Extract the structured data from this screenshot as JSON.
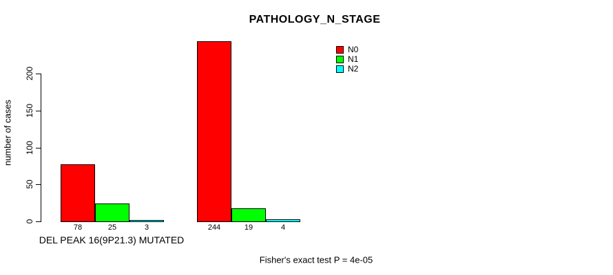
{
  "chart_data": {
    "type": "bar",
    "title": "PATHOLOGY_N_STAGE",
    "ylabel": "number of cases",
    "yticks": [
      0,
      50,
      100,
      150,
      200
    ],
    "ylim": [
      0,
      244
    ],
    "grid": false,
    "legend_position": "top-right",
    "categories": [
      "DEL PEAK 16(9P21.3) MUTATED",
      ""
    ],
    "series": [
      {
        "name": "N0",
        "color": "#ff0000",
        "values": [
          78,
          244
        ]
      },
      {
        "name": "N1",
        "color": "#00ff00",
        "values": [
          25,
          19
        ]
      },
      {
        "name": "N2",
        "color": "#00ffff",
        "values": [
          3,
          4
        ]
      }
    ],
    "bar_value_labels": true,
    "annotation": "Fisher's exact test P = 4e-05"
  }
}
